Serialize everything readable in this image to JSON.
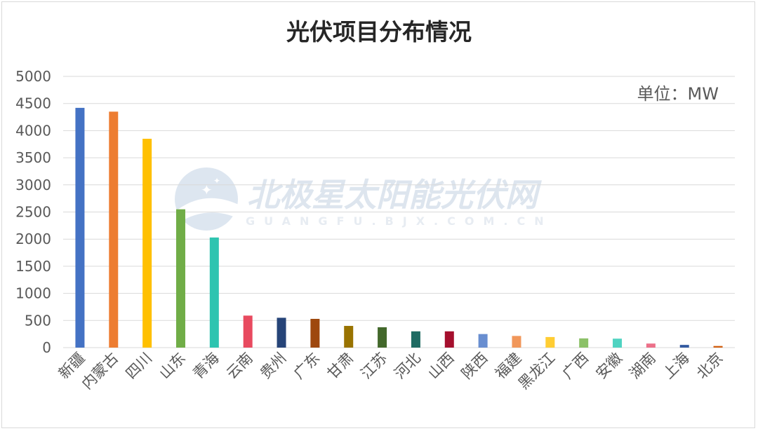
{
  "chart_data": {
    "type": "bar",
    "title": "光伏项目分布情况",
    "unit_label": "单位：MW",
    "xlabel": "",
    "ylabel": "",
    "ylim": [
      0,
      5000
    ],
    "yticks": [
      "0",
      "500",
      "1000",
      "1500",
      "2000",
      "2500",
      "3000",
      "3500",
      "4000",
      "4500",
      "5000"
    ],
    "grid": true,
    "legend": "none",
    "categories": [
      "新疆",
      "内蒙古",
      "四川",
      "山东",
      "青海",
      "云南",
      "贵州",
      "广东",
      "甘肃",
      "江苏",
      "河北",
      "山西",
      "陕西",
      "福建",
      "黑龙江",
      "广西",
      "安徽",
      "湖南",
      "上海",
      "北京"
    ],
    "values": [
      4420,
      4350,
      3850,
      2550,
      2030,
      590,
      550,
      530,
      400,
      375,
      300,
      300,
      250,
      215,
      195,
      170,
      165,
      75,
      50,
      30
    ],
    "colors": [
      "#4472c4",
      "#ed7d31",
      "#ffc000",
      "#70ad47",
      "#2ec4b0",
      "#e84a5f",
      "#264478",
      "#9e480e",
      "#997300",
      "#43682b",
      "#1f6b63",
      "#a50f2d",
      "#698ed0",
      "#f1975a",
      "#ffcd33",
      "#8cc168",
      "#4fd3c1",
      "#ec7089",
      "#335aa1",
      "#d26012"
    ]
  },
  "watermark": {
    "text": "北极星太阳能光伏网",
    "subtext": "GUANGFU.BJX.COM.CN"
  }
}
